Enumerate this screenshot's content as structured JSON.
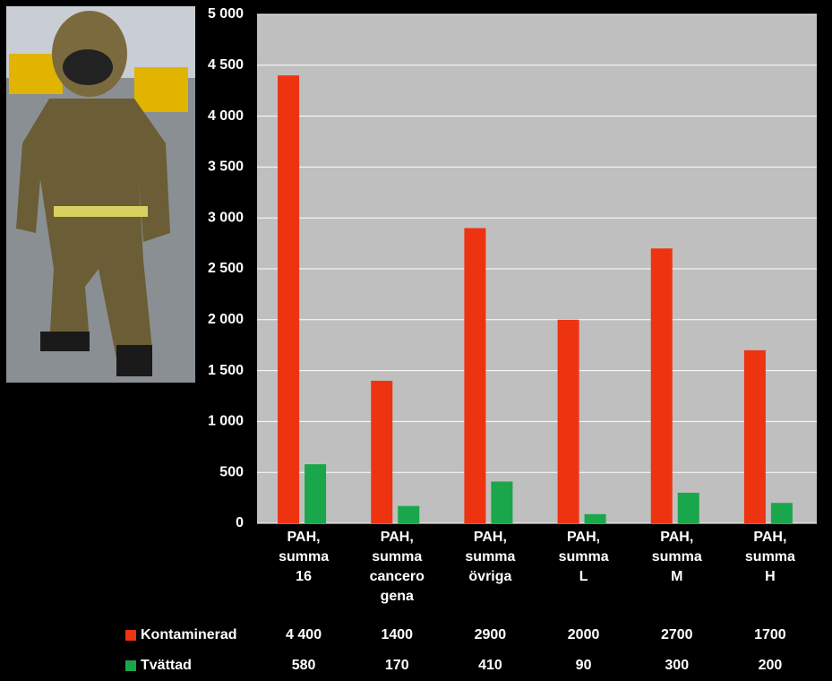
{
  "chart_data": {
    "type": "bar",
    "categories": [
      "PAH, summa 16",
      "PAH, summa cancerogena",
      "PAH, summa övriga",
      "PAH, summa L",
      "PAH, summa M",
      "PAH, summa H"
    ],
    "series": [
      {
        "name": "Kontaminerad",
        "color": "#ee3311",
        "values": [
          4400,
          1400,
          2900,
          2000,
          2700,
          1700
        ],
        "value_labels": [
          "4 400",
          "1400",
          "2900",
          "2000",
          "2700",
          "1700"
        ]
      },
      {
        "name": "Tvättad",
        "color": "#1aa64a",
        "values": [
          580,
          170,
          410,
          90,
          300,
          200
        ]
      }
    ],
    "ylim": [
      0,
      5000
    ],
    "yticks": [
      0,
      500,
      {
        "value": 1000,
        "label": "1 000"
      },
      {
        "value": 1500,
        "label": "1 500"
      },
      {
        "value": 2000,
        "label": "2 000"
      },
      {
        "value": 2500,
        "label": "2 500"
      },
      {
        "value": 3000,
        "label": "3 000"
      },
      {
        "value": 3500,
        "label": "3 500"
      },
      {
        "value": 4000,
        "label": "4 000"
      },
      {
        "value": 4500,
        "label": "4 500"
      },
      {
        "value": 5000,
        "label": "5 000"
      }
    ],
    "grid": true
  }
}
